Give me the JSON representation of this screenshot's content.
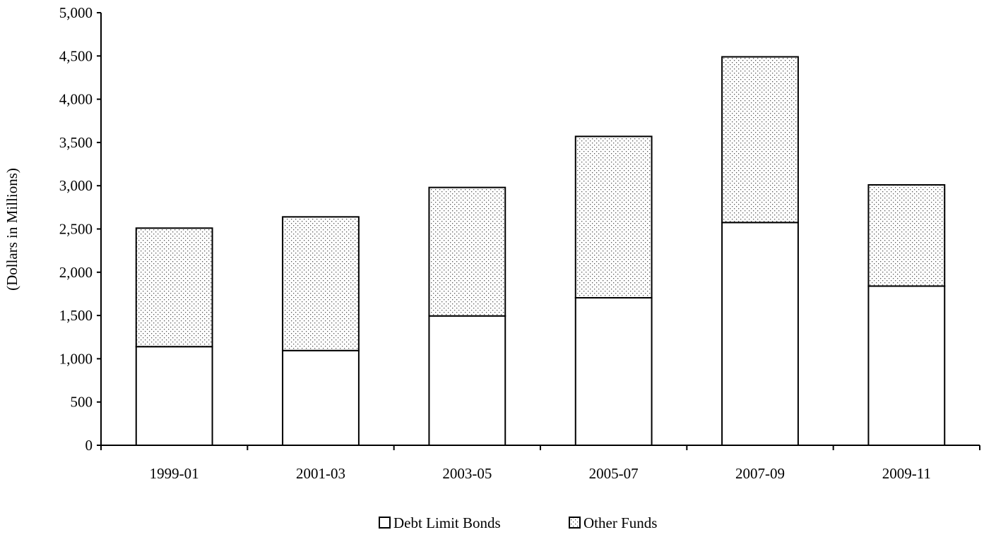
{
  "chart_data": {
    "type": "bar",
    "stacked": true,
    "categories": [
      "1999-01",
      "2001-03",
      "2003-05",
      "2005-07",
      "2007-09",
      "2009-11"
    ],
    "series": [
      {
        "name": "Debt Limit Bonds",
        "fill": "plain-white",
        "values": [
          1140,
          1095,
          1495,
          1705,
          2575,
          1840
        ]
      },
      {
        "name": "Other Funds",
        "fill": "dotted",
        "values": [
          1370,
          1545,
          1485,
          1865,
          1915,
          1170
        ]
      }
    ],
    "ylabel": "(Dollars in Millions)",
    "ylim": [
      0,
      5000
    ],
    "yticks": [
      "0",
      "500",
      "1,000",
      "1,500",
      "2,000",
      "2,500",
      "3,000",
      "3,500",
      "4,000",
      "4,500",
      "5,000"
    ],
    "grid": false,
    "legend_position": "bottom"
  }
}
